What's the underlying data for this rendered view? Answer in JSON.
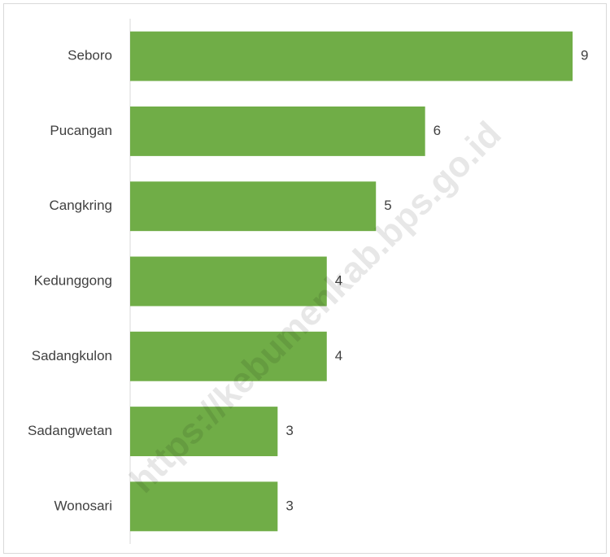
{
  "chart_data": {
    "type": "bar",
    "orientation": "horizontal",
    "categories": [
      "Seboro",
      "Pucangan",
      "Cangkring",
      "Kedunggong",
      "Sadangkulon",
      "Sadangwetan",
      "Wonosari"
    ],
    "values": [
      9,
      6,
      5,
      4,
      4,
      3,
      3
    ],
    "color": "#70ad47",
    "xlim": [
      0,
      9
    ],
    "watermark": "https://kebumenkab.bps.go.id"
  }
}
